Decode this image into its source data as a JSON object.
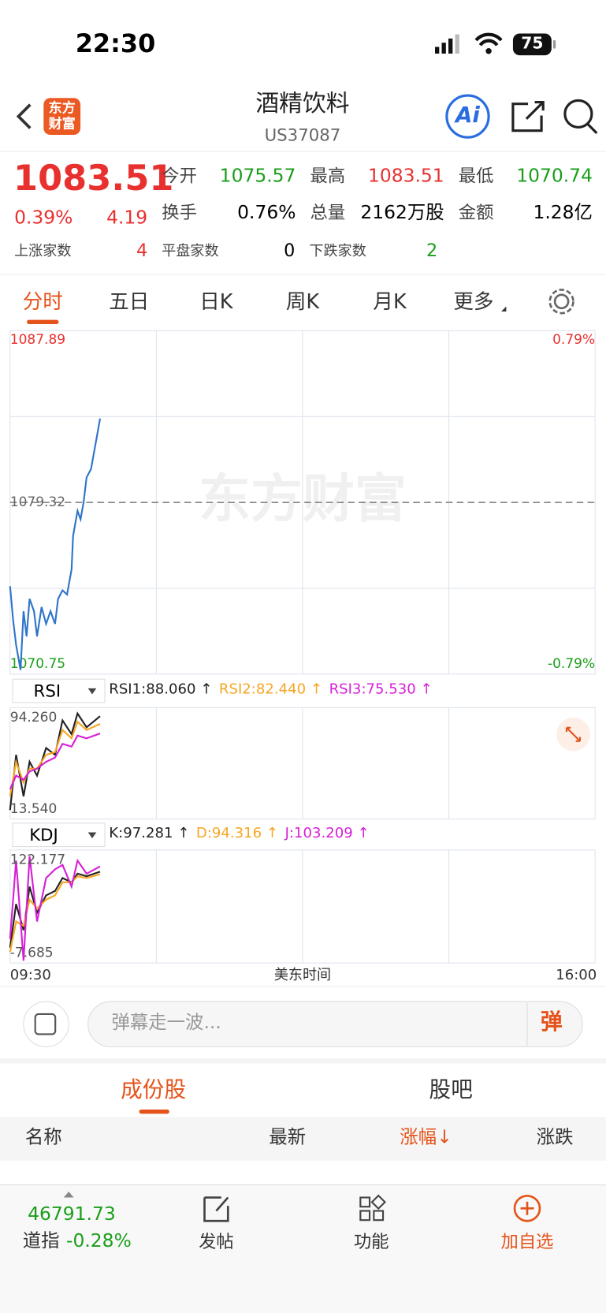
{
  "status_bar": {
    "time": "22:30",
    "battery": "75"
  },
  "header": {
    "logo": [
      "东方",
      "财富"
    ],
    "title": "酒精饮料",
    "code": "US37087",
    "ai": "Ai"
  },
  "quote": {
    "price": "1083.51",
    "change_pct": "0.39%",
    "change": "4.19",
    "stats": [
      [
        "今开",
        "1075.57"
      ],
      [
        "最高",
        "1083.51"
      ],
      [
        "最低",
        "1070.74"
      ],
      [
        "换手",
        "0.76%"
      ],
      [
        "总量",
        "2162万股"
      ],
      [
        "金额",
        "1.28亿"
      ]
    ],
    "breadth": [
      [
        "上涨家数",
        "4"
      ],
      [
        "平盘家数",
        "0"
      ],
      [
        "下跌家数",
        "2"
      ]
    ]
  },
  "tabs": [
    "分时",
    "五日",
    "日K",
    "周K",
    "月K",
    "更多"
  ],
  "intraday": {
    "watermark": "东方财富",
    "x": [
      "09:30",
      "09:32",
      "09:34",
      "09:37",
      "09:39",
      "09:41",
      "09:43",
      "09:46",
      "09:48",
      "09:51",
      "09:54",
      "09:57",
      "10:00",
      "10:02",
      "10:05",
      "10:08",
      "10:11",
      "10:12",
      "10:15",
      "10:17",
      "10:19",
      "10:21",
      "10:24",
      "10:26",
      "10:28",
      "10:30"
    ],
    "values": [
      1075.14,
      1073.47,
      1072.21,
      1070.96,
      1073.89,
      1072.63,
      1074.51,
      1073.89,
      1072.63,
      1074.1,
      1073.26,
      1073.89,
      1073.26,
      1074.51,
      1074.93,
      1074.72,
      1075.98,
      1077.65,
      1078.9,
      1078.48,
      1079.32,
      1080.57,
      1080.99,
      1081.83,
      1082.66,
      1083.51
    ],
    "color": "#2f74c9",
    "ylim": [
      1070.75,
      1087.89
    ],
    "yticks": [
      1070.75,
      1079.32,
      1087.89
    ],
    "y2lim": [
      -0.79,
      0.79
    ],
    "y2ticks": [
      {
        "value": -0.79,
        "label": "-0.79%"
      },
      {
        "value": 0.79,
        "label": "0.79%"
      }
    ],
    "xticks": [
      "09:30",
      "16:00"
    ],
    "xlabel": "美东时间"
  },
  "rsi": {
    "selector": "RSI",
    "legend": [
      "RSI1:88.060 ↑",
      "RSI2:82.440 ↑",
      "RSI3:75.530 ↑"
    ],
    "x": [
      "09:30",
      "09:34",
      "09:39",
      "09:43",
      "09:48",
      "09:54",
      "10:00",
      "10:05",
      "10:11",
      "10:15",
      "10:21",
      "10:30"
    ],
    "series": [
      {
        "color": "#222222",
        "values": [
          20,
          60,
          30,
          55,
          45,
          65,
          60,
          85,
          75,
          90,
          80,
          88.06
        ]
      },
      {
        "color": "#f5a623",
        "values": [
          30,
          55,
          40,
          50,
          50,
          60,
          62,
          78,
          72,
          84,
          78,
          82.44
        ]
      },
      {
        "color": "#d61fd6",
        "values": [
          35,
          45,
          42,
          48,
          50,
          55,
          58,
          68,
          66,
          74,
          72,
          75.53
        ]
      }
    ],
    "ylim": [
      13.54,
      94.26
    ],
    "yticks": [
      {
        "value": 13.54,
        "label": "13.540"
      },
      {
        "value": 94.26,
        "label": "94.260"
      }
    ]
  },
  "kdj": {
    "selector": "KDJ",
    "legend": [
      "K:97.281 ↑",
      "D:94.316 ↑",
      "J:103.209 ↑"
    ],
    "x": [
      "09:30",
      "09:34",
      "09:39",
      "09:43",
      "09:48",
      "09:54",
      "10:00",
      "10:05",
      "10:11",
      "10:15",
      "10:21",
      "10:30"
    ],
    "series": [
      {
        "color": "#222222",
        "values": [
          10,
          60,
          30,
          80,
          50,
          70,
          75,
          90,
          85,
          95,
          92,
          97.281
        ]
      },
      {
        "color": "#f5a623",
        "values": [
          5,
          40,
          35,
          65,
          55,
          65,
          70,
          85,
          85,
          92,
          90,
          94.316
        ]
      },
      {
        "color": "#d61fd6",
        "values": [
          20,
          110,
          -5,
          115,
          40,
          90,
          100,
          105,
          80,
          110,
          95,
          103.209
        ]
      }
    ],
    "ylim": [
      -7.685,
      122.177
    ],
    "yticks": [
      -7.685,
      122.177
    ]
  },
  "comment": {
    "placeholder": "弹幕走一波...",
    "button": "弹"
  },
  "bottom_tabs": [
    "成份股",
    "股吧"
  ],
  "table_header": [
    "名称",
    "最新",
    "涨幅↓",
    "涨跌"
  ],
  "footer": {
    "index_value": "46791.73",
    "index_name": "道指",
    "index_change": "-0.28%",
    "nav": [
      "发帖",
      "功能",
      "加自选"
    ]
  }
}
